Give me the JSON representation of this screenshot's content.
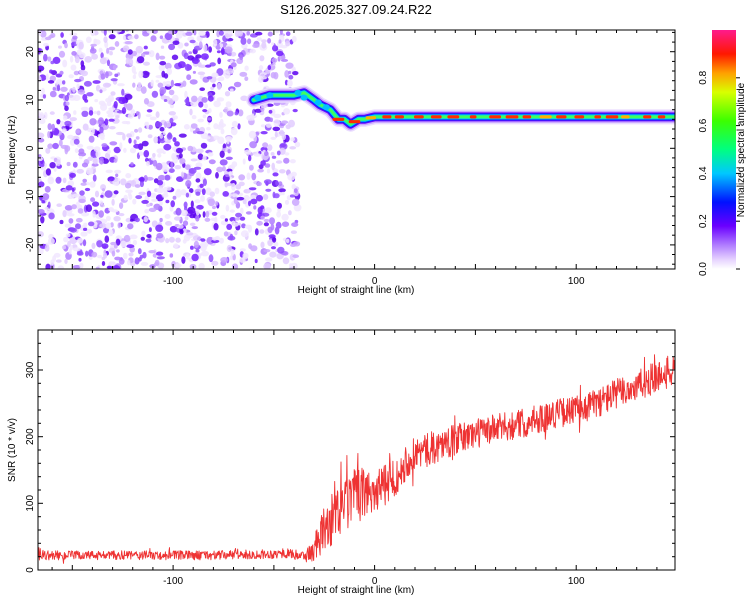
{
  "title": "S126.2025.327.09.24.R22",
  "chart_data": [
    {
      "type": "heatmap",
      "name": "spectrogram",
      "xlabel": "Height of straight line (km)",
      "ylabel": "Frequency (Hz)",
      "xlim": [
        -167,
        149
      ],
      "ylim": [
        -25,
        24.5
      ],
      "xticks": [
        -100,
        0,
        100
      ],
      "yticks": [
        -20,
        -10,
        0,
        10,
        20
      ],
      "noise_region_x": [
        -167,
        -40
      ],
      "signal_track": {
        "x": [
          -60,
          -52,
          -45,
          -40,
          -35,
          -30,
          -27,
          -22,
          -18,
          -15,
          -12,
          -8,
          -5,
          0,
          10,
          20,
          40,
          60,
          80,
          100,
          120,
          140,
          149
        ],
        "y": [
          10,
          11,
          11,
          11,
          11.5,
          10,
          9,
          8,
          6,
          6,
          5,
          6,
          6,
          6.5,
          6.5,
          6.5,
          6.5,
          6.5,
          6.5,
          6.5,
          6.5,
          6.5,
          6.5
        ]
      },
      "colorbar": {
        "label": "Normalized spectral amplitude",
        "range": [
          0,
          1
        ],
        "ticks": [
          "0.0",
          "0.2",
          "0.4",
          "0.6",
          "0.8"
        ],
        "tick_values": [
          0,
          0.2,
          0.4,
          0.6,
          0.8
        ]
      }
    },
    {
      "type": "line",
      "name": "snr",
      "xlabel": "Height of straight line (km)",
      "ylabel": "SNR (10 * v/v)",
      "xlim": [
        -167,
        149
      ],
      "ylim": [
        0,
        360
      ],
      "xticks": [
        -100,
        0,
        100
      ],
      "yticks": [
        0,
        100,
        200,
        300
      ],
      "color": "#ee3333",
      "trend": {
        "x": [
          -167,
          -120,
          -80,
          -50,
          -42,
          -35,
          -30,
          -25,
          -20,
          -15,
          -10,
          -5,
          0,
          5,
          10,
          15,
          20,
          30,
          40,
          50,
          60,
          70,
          80,
          90,
          100,
          110,
          120,
          130,
          140,
          149
        ],
        "y": [
          22,
          22,
          22,
          24,
          25,
          20,
          30,
          60,
          80,
          95,
          110,
          115,
          120,
          125,
          140,
          160,
          175,
          185,
          195,
          205,
          212,
          218,
          225,
          235,
          240,
          250,
          265,
          275,
          290,
          300
        ]
      },
      "noise_amplitude": {
        "x": [
          -167,
          -45,
          -35,
          -25,
          -15,
          0,
          20,
          60,
          100,
          149
        ],
        "y": [
          7,
          7,
          8,
          35,
          45,
          35,
          25,
          22,
          22,
          25
        ]
      }
    }
  ]
}
